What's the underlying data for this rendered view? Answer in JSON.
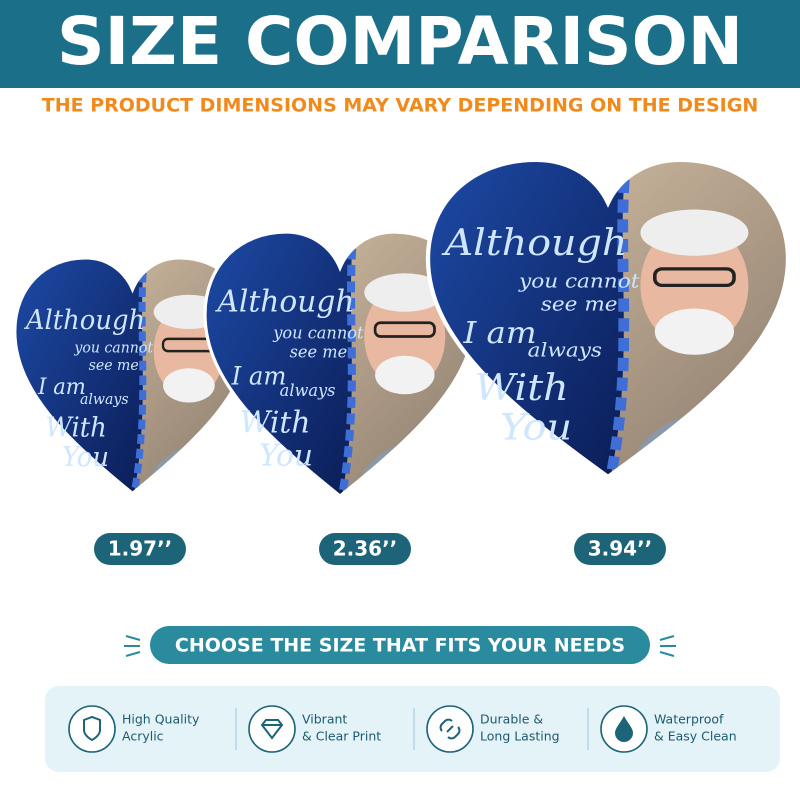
{
  "header": {
    "title": "SIZE COMPARISON",
    "subtitle": "THE PRODUCT DIMENSIONS MAY VARY DEPENDING ON THE DESIGN"
  },
  "heart_message": [
    "Although",
    "you cannot",
    "see me",
    "I am",
    "always",
    "With",
    "You"
  ],
  "products": [
    {
      "size": "1.97’’"
    },
    {
      "size": "2.36’’"
    },
    {
      "size": "3.94’’"
    }
  ],
  "cta": "CHOOSE THE SIZE THAT FITS YOUR NEEDS",
  "features": [
    {
      "lines": [
        "High Quality",
        "Acrylic"
      ]
    },
    {
      "lines": [
        "Vibrant",
        "& Clear Print"
      ]
    },
    {
      "lines": [
        "Durable &",
        "Long Lasting"
      ]
    },
    {
      "lines": [
        "Waterproof",
        "& Easy Clean"
      ]
    }
  ]
}
